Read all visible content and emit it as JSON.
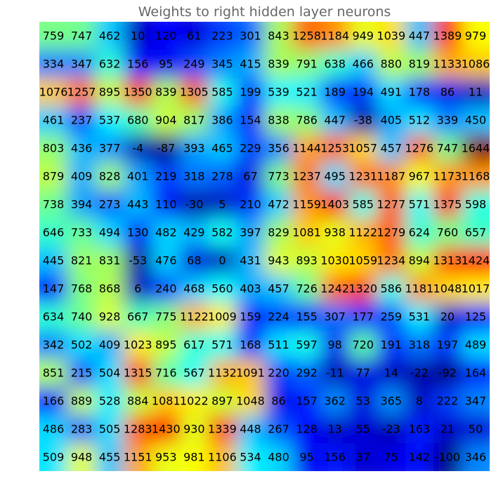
{
  "chart_data": {
    "type": "heatmap",
    "title": "Weights to right hidden layer neurons",
    "colormap": "jet",
    "value_range": [
      -100,
      1644
    ],
    "interpolation": "smooth",
    "cell_label_color": "#000000",
    "values": [
      [
        759,
        747,
        462,
        10,
        120,
        61,
        223,
        301,
        843,
        1258,
        1184,
        949,
        1039,
        447,
        1389,
        979
      ],
      [
        334,
        347,
        632,
        156,
        95,
        249,
        345,
        415,
        839,
        791,
        638,
        466,
        880,
        819,
        1133,
        1086
      ],
      [
        1076,
        1257,
        895,
        1350,
        839,
        1305,
        585,
        199,
        539,
        521,
        189,
        194,
        491,
        178,
        86,
        11
      ],
      [
        461,
        237,
        537,
        680,
        904,
        817,
        386,
        154,
        838,
        786,
        447,
        -38,
        405,
        512,
        339,
        450
      ],
      [
        803,
        436,
        377,
        -4,
        -87,
        393,
        465,
        229,
        356,
        1144,
        1253,
        1057,
        457,
        1276,
        747,
        1644
      ],
      [
        879,
        409,
        828,
        401,
        219,
        318,
        278,
        67,
        773,
        1237,
        495,
        1231,
        1187,
        967,
        1173,
        1168
      ],
      [
        738,
        394,
        273,
        443,
        110,
        -30,
        5,
        210,
        472,
        1159,
        1403,
        585,
        1277,
        571,
        1375,
        598
      ],
      [
        646,
        733,
        494,
        130,
        482,
        429,
        582,
        397,
        829,
        1081,
        938,
        1122,
        1279,
        624,
        760,
        657
      ],
      [
        445,
        821,
        831,
        -53,
        476,
        68,
        0,
        431,
        943,
        893,
        1030,
        1059,
        1234,
        894,
        1313,
        1424
      ],
      [
        147,
        768,
        868,
        6,
        240,
        468,
        560,
        403,
        457,
        726,
        1242,
        1320,
        586,
        1181,
        1048,
        1017
      ],
      [
        634,
        740,
        928,
        667,
        775,
        1122,
        1009,
        159,
        224,
        155,
        307,
        177,
        259,
        531,
        20,
        125
      ],
      [
        342,
        502,
        409,
        1023,
        895,
        617,
        571,
        168,
        511,
        597,
        98,
        720,
        191,
        318,
        197,
        489
      ],
      [
        851,
        215,
        504,
        1315,
        716,
        567,
        1132,
        1091,
        220,
        292,
        -11,
        77,
        14,
        -22,
        -92,
        164
      ],
      [
        166,
        889,
        528,
        884,
        1081,
        1022,
        897,
        1048,
        86,
        157,
        362,
        53,
        365,
        8,
        222,
        347
      ],
      [
        486,
        283,
        505,
        1283,
        1430,
        930,
        1339,
        448,
        267,
        128,
        13,
        55,
        -23,
        163,
        21,
        50
      ],
      [
        509,
        948,
        455,
        1151,
        953,
        981,
        1106,
        534,
        480,
        95,
        156,
        37,
        75,
        142,
        -100,
        346
      ]
    ]
  }
}
